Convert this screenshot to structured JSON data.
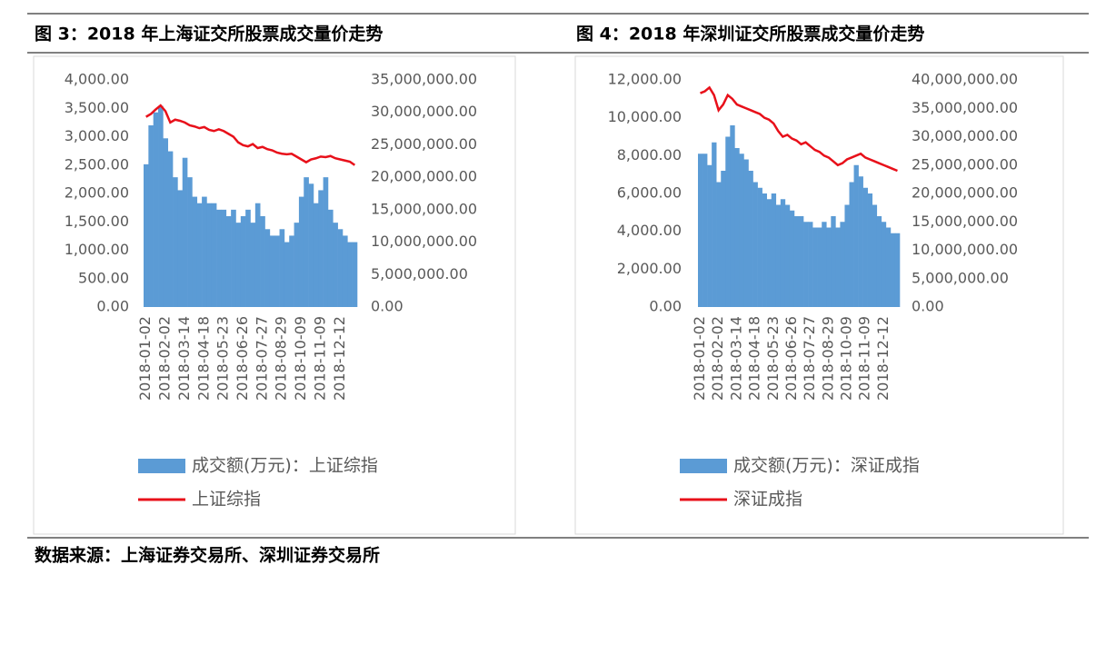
{
  "chart_data": [
    {
      "type": "bar-line",
      "title": "图 3：2018 年上海证交所股票成交量价走势",
      "categories": [
        "2018-01-02",
        null,
        null,
        null,
        "2018-02-02",
        null,
        null,
        null,
        "2018-03-14",
        null,
        null,
        null,
        "2018-04-18",
        null,
        null,
        null,
        "2018-05-23",
        null,
        null,
        null,
        "2018-06-26",
        null,
        null,
        null,
        "2018-07-27",
        null,
        null,
        null,
        "2018-08-29",
        null,
        null,
        null,
        "2018-10-09",
        null,
        null,
        null,
        "2018-11-09",
        null,
        null,
        null,
        "2018-12-12",
        null,
        null,
        null
      ],
      "series": [
        {
          "name": "成交额(万元)：上证综指",
          "type": "bar",
          "axis": "y2",
          "color": "#5b9bd5",
          "values": [
            22000000,
            28000000,
            30000000,
            31000000,
            26000000,
            24000000,
            20000000,
            18000000,
            23000000,
            20000000,
            17000000,
            16000000,
            17000000,
            16000000,
            16000000,
            15000000,
            15000000,
            14000000,
            15000000,
            13000000,
            14000000,
            15000000,
            13000000,
            16000000,
            14000000,
            12000000,
            11000000,
            11000000,
            12000000,
            10000000,
            11000000,
            13000000,
            17000000,
            20000000,
            19000000,
            16000000,
            18000000,
            20000000,
            15000000,
            13000000,
            12000000,
            11000000,
            10000000,
            10000000
          ]
        },
        {
          "name": "上证综指",
          "type": "line",
          "color": "#e8101a",
          "values": [
            3350,
            3400,
            3480,
            3550,
            3450,
            3250,
            3300,
            3280,
            3250,
            3200,
            3180,
            3150,
            3170,
            3120,
            3100,
            3130,
            3100,
            3050,
            3000,
            2900,
            2850,
            2830,
            2870,
            2800,
            2820,
            2780,
            2760,
            2720,
            2700,
            2690,
            2700,
            2650,
            2600,
            2550,
            2600,
            2620,
            2650,
            2640,
            2660,
            2620,
            2600,
            2580,
            2560,
            2500
          ]
        }
      ],
      "ylim": [
        0,
        4000
      ],
      "yticks": [
        {
          "value": 0,
          "label": "0.00"
        },
        {
          "value": 500,
          "label": "500.00"
        },
        {
          "value": 1000,
          "label": "1,000.00"
        },
        {
          "value": 1500,
          "label": "1,500.00"
        },
        {
          "value": 2000,
          "label": "2,000.00"
        },
        {
          "value": 2500,
          "label": "2,500.00"
        },
        {
          "value": 3000,
          "label": "3,000.00"
        },
        {
          "value": 3500,
          "label": "3,500.00"
        },
        {
          "value": 4000,
          "label": "4,000.00"
        }
      ],
      "y2lim": [
        0,
        35000000
      ],
      "y2ticks": [
        {
          "value": 0,
          "label": "0.00"
        },
        {
          "value": 5000000,
          "label": "5,000,000.00"
        },
        {
          "value": 10000000,
          "label": "10,000,000.00"
        },
        {
          "value": 15000000,
          "label": "15,000,000.00"
        },
        {
          "value": 20000000,
          "label": "20,000,000.00"
        },
        {
          "value": 25000000,
          "label": "25,000,000.00"
        },
        {
          "value": 30000000,
          "label": "30,000,000.00"
        },
        {
          "value": 35000000,
          "label": "35,000,000.00"
        }
      ]
    },
    {
      "type": "bar-line",
      "title": "图 4：2018 年深圳证交所股票成交量价走势",
      "categories": [
        "2018-01-02",
        null,
        null,
        null,
        "2018-02-02",
        null,
        null,
        null,
        "2018-03-14",
        null,
        null,
        null,
        "2018-04-18",
        null,
        null,
        null,
        "2018-05-23",
        null,
        null,
        null,
        "2018-06-26",
        null,
        null,
        null,
        "2018-07-27",
        null,
        null,
        null,
        "2018-08-29",
        null,
        null,
        null,
        "2018-10-09",
        null,
        null,
        null,
        "2018-11-09",
        null,
        null,
        null,
        "2018-12-12",
        null,
        null,
        null
      ],
      "series": [
        {
          "name": "成交额(万元)：深证成指",
          "type": "bar",
          "axis": "y2",
          "color": "#5b9bd5",
          "values": [
            27000000,
            27000000,
            25000000,
            29000000,
            22000000,
            24000000,
            30000000,
            32000000,
            28000000,
            27000000,
            26000000,
            24000000,
            22000000,
            21000000,
            20000000,
            19000000,
            20000000,
            18000000,
            19000000,
            18000000,
            17000000,
            16000000,
            16000000,
            15000000,
            15000000,
            14000000,
            14000000,
            15000000,
            14000000,
            16000000,
            14000000,
            15000000,
            18000000,
            22000000,
            25000000,
            23000000,
            21000000,
            20000000,
            18000000,
            16000000,
            15000000,
            14000000,
            13000000,
            13000000
          ]
        },
        {
          "name": "深证成指",
          "type": "line",
          "color": "#e8101a",
          "values": [
            11300,
            11400,
            11600,
            11200,
            10400,
            10700,
            11200,
            11000,
            10700,
            10600,
            10500,
            10400,
            10300,
            10200,
            10000,
            9900,
            9700,
            9300,
            9000,
            9100,
            8900,
            8800,
            8600,
            8700,
            8500,
            8300,
            8200,
            8000,
            7900,
            7700,
            7500,
            7600,
            7800,
            7900,
            8000,
            8100,
            7900,
            7800,
            7700,
            7600,
            7500,
            7400,
            7300,
            7200
          ]
        }
      ],
      "ylim": [
        0,
        12000
      ],
      "yticks": [
        {
          "value": 0,
          "label": "0.00"
        },
        {
          "value": 2000,
          "label": "2,000.00"
        },
        {
          "value": 4000,
          "label": "4,000.00"
        },
        {
          "value": 6000,
          "label": "6,000.00"
        },
        {
          "value": 8000,
          "label": "8,000.00"
        },
        {
          "value": 10000,
          "label": "10,000.00"
        },
        {
          "value": 12000,
          "label": "12,000.00"
        }
      ],
      "y2lim": [
        0,
        40000000
      ],
      "y2ticks": [
        {
          "value": 0,
          "label": "0.00"
        },
        {
          "value": 5000000,
          "label": "5,000,000.00"
        },
        {
          "value": 10000000,
          "label": "10,000,000.00"
        },
        {
          "value": 15000000,
          "label": "15,000,000.00"
        },
        {
          "value": 20000000,
          "label": "20,000,000.00"
        },
        {
          "value": 25000000,
          "label": "25,000,000.00"
        },
        {
          "value": 30000000,
          "label": "30,000,000.00"
        },
        {
          "value": 35000000,
          "label": "35,000,000.00"
        },
        {
          "value": 40000000,
          "label": "40,000,000.00"
        }
      ]
    }
  ],
  "source": "数据来源：上海证券交易所、深圳证券交易所"
}
